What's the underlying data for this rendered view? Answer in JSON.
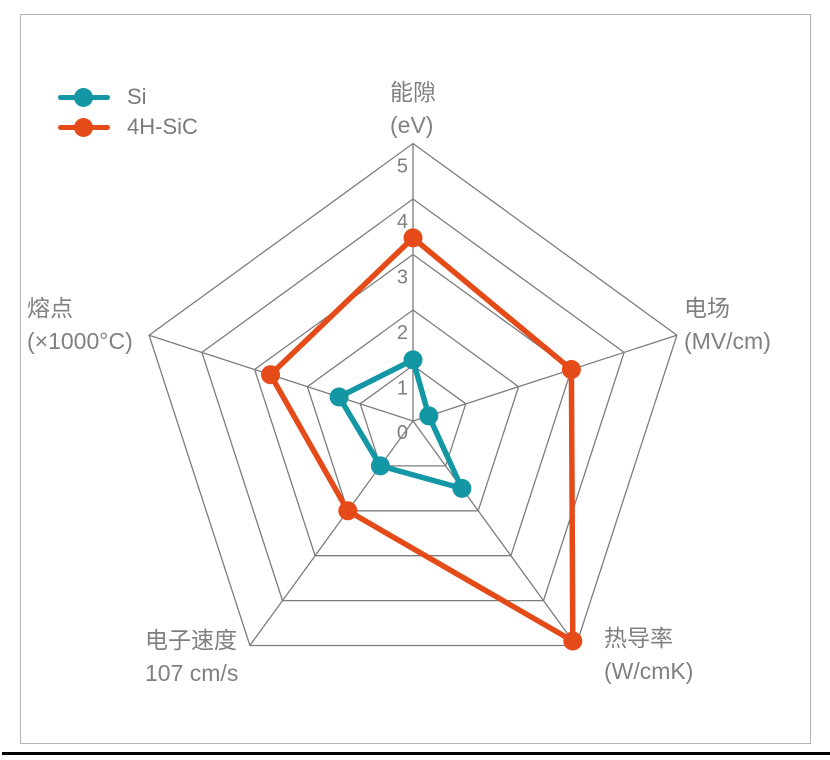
{
  "page": {
    "background": "#ffffff",
    "card_border_color": "#b3b3b3",
    "bottom_bar_color": "#000000"
  },
  "chart_data": {
    "type": "radar",
    "shape": "pentagon",
    "axes": [
      {
        "label": "能隙",
        "unit": "(eV)"
      },
      {
        "label": "电场",
        "unit": "(MV/cm)"
      },
      {
        "label": "热导率",
        "unit": "(W/cmK)"
      },
      {
        "label": "电子速度",
        "unit": "107 cm/s"
      },
      {
        "label": "熔点",
        "unit": "(×1000°C)"
      }
    ],
    "series": [
      {
        "name": "Si",
        "color": "#1397A4",
        "values": [
          1.1,
          0.3,
          1.5,
          1.0,
          1.4
        ]
      },
      {
        "name": "4H-SiC",
        "color": "#E54B18",
        "values": [
          3.3,
          3.0,
          4.9,
          2.0,
          2.7
        ]
      }
    ],
    "ticks": [
      0,
      1,
      2,
      3,
      4,
      5
    ],
    "rmax": 5,
    "grid_color": "#7d7d7d",
    "tick_label_color": "#808080",
    "axis_label_color": "#808080",
    "legend_position": "top-left",
    "grid": true,
    "fill": false
  }
}
